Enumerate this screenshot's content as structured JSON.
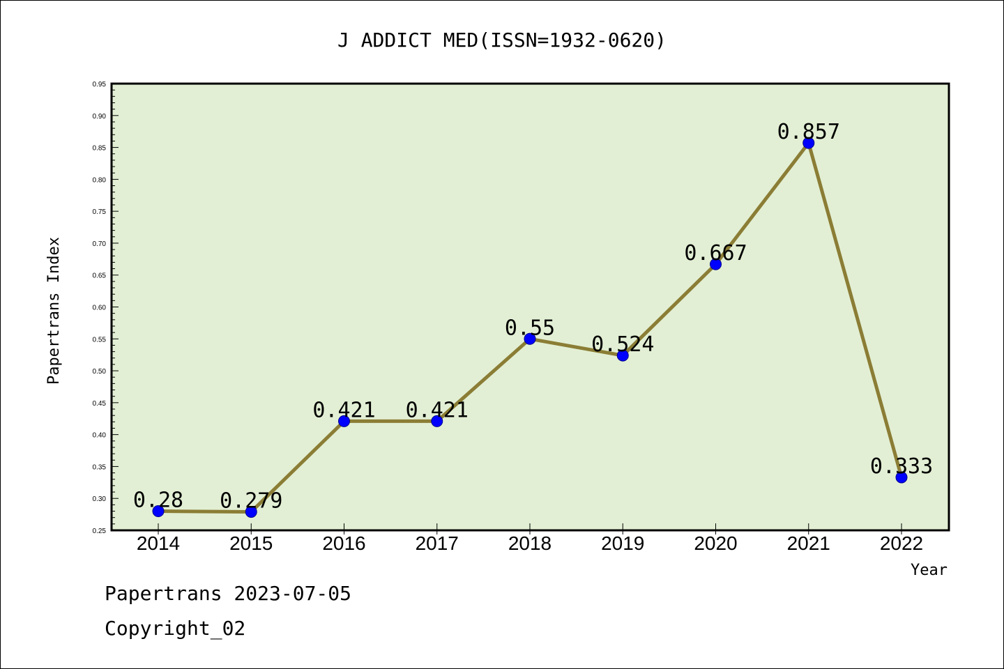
{
  "chart_data": {
    "type": "line",
    "title": "J ADDICT MED(ISSN=1932-0620)",
    "xlabel": "Year",
    "ylabel": "Papertrans Index",
    "categories": [
      "2014",
      "2015",
      "2016",
      "2017",
      "2018",
      "2019",
      "2020",
      "2021",
      "2022"
    ],
    "series": [
      {
        "values": [
          0.28,
          0.279,
          0.421,
          0.421,
          0.55,
          0.524,
          0.667,
          0.857,
          0.333
        ],
        "labels": [
          "0.28",
          "0.279",
          "0.421",
          "0.421",
          "0.55",
          "0.524",
          "0.667",
          "0.857",
          "0.333"
        ]
      }
    ],
    "ylim": [
      0.25,
      0.95
    ],
    "yticks": [
      "0.25",
      "0.30",
      "0.35",
      "0.40",
      "0.45",
      "0.50",
      "0.55",
      "0.60",
      "0.65",
      "0.70",
      "0.75",
      "0.80",
      "0.85",
      "0.90",
      "0.95"
    ],
    "grid": false,
    "legend": "none",
    "colors": {
      "plot_background": "#e2efd4",
      "line": "#8b7d35",
      "marker": "#0000ff"
    }
  },
  "footer": {
    "line1": "Papertrans 2023-07-05",
    "line2": "Copyright_02"
  }
}
